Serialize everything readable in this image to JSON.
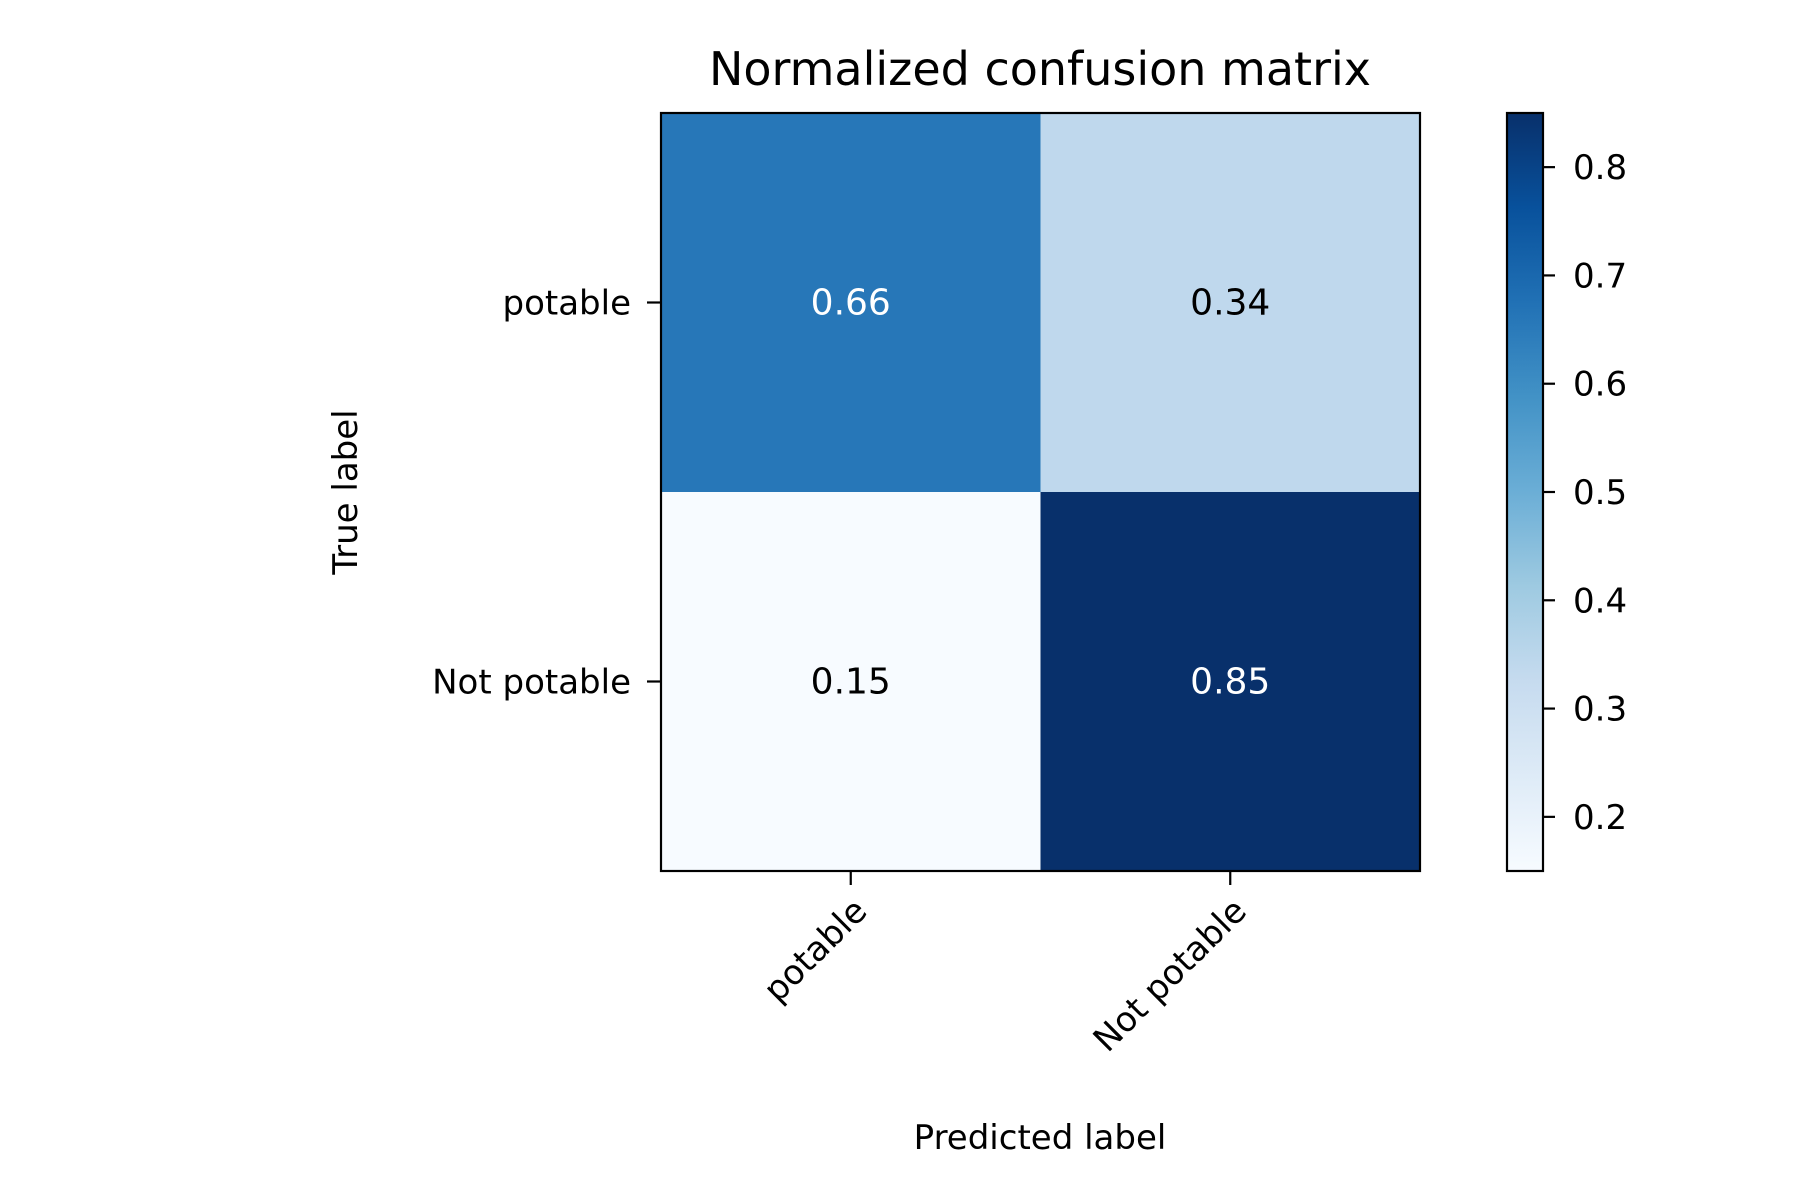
{
  "chart_data": {
    "type": "heatmap",
    "title": "Normalized confusion matrix",
    "xlabel": "Predicted label",
    "ylabel": "True label",
    "x_categories": [
      "potable",
      "Not potable"
    ],
    "y_categories": [
      "potable",
      "Not potable"
    ],
    "values": [
      [
        0.66,
        0.34
      ],
      [
        0.15,
        0.85
      ]
    ],
    "value_labels": [
      [
        "0.66",
        "0.34"
      ],
      [
        "0.15",
        "0.85"
      ]
    ],
    "colormap": "Blues",
    "colormap_stops": [
      "#f7fbff",
      "#deebf7",
      "#c6dbef",
      "#9ecae1",
      "#6baed6",
      "#4292c6",
      "#2171b5",
      "#08519c",
      "#08306b"
    ],
    "vmin": 0.15,
    "vmax": 0.85,
    "text_colors": {
      "light": "#ffffff",
      "dark": "#000000"
    },
    "colorbar": {
      "ticks": [
        0.2,
        0.3,
        0.4,
        0.5,
        0.6,
        0.7,
        0.8
      ],
      "tick_labels": [
        "0.2",
        "0.3",
        "0.4",
        "0.5",
        "0.6",
        "0.7",
        "0.8"
      ],
      "placement": "right"
    },
    "grid": false,
    "x_tick_rotation_deg": 45
  }
}
